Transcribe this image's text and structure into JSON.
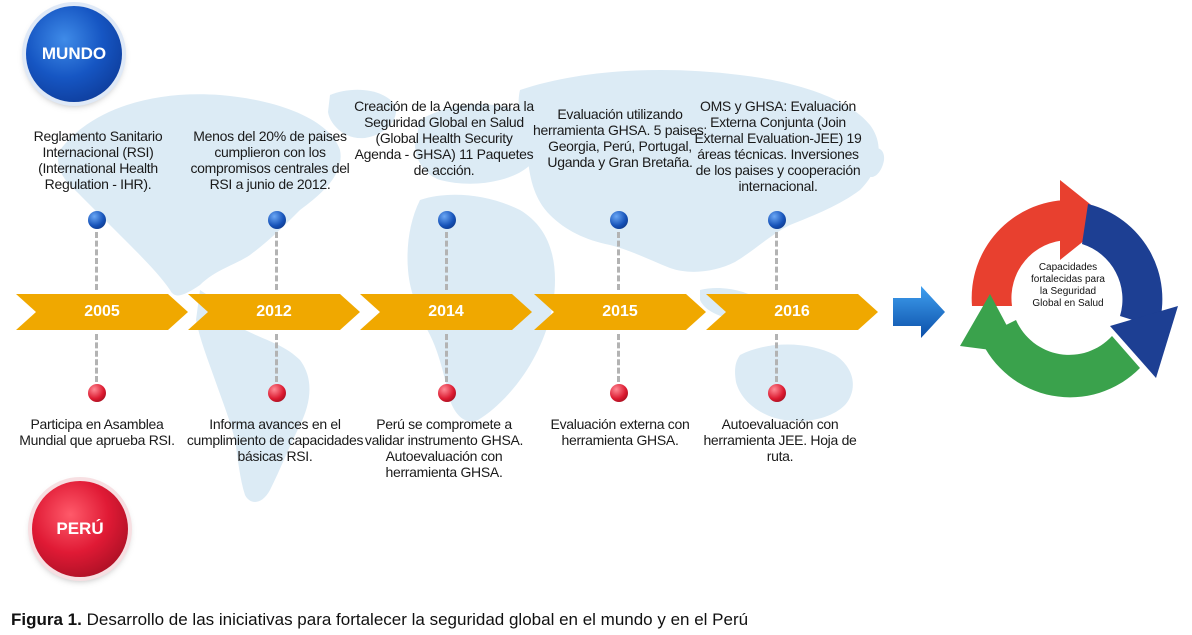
{
  "circles": {
    "mundo": "MUNDO",
    "peru": "PERÚ"
  },
  "timeline": [
    {
      "year": "2005",
      "mundo_text": "Reglamento Sanitario Internacional (RSI) (International Health Regulation - IHR).",
      "peru_text": "Participa en Asamblea Mundial que aprueba RSI."
    },
    {
      "year": "2012",
      "mundo_text": "Menos del 20% de paises cumplieron con los compromisos centrales del RSI a junio de 2012.",
      "peru_text": "Informa avances en el cumplimiento de capacidades básicas RSI."
    },
    {
      "year": "2014",
      "mundo_text": "Creación de la Agenda para la Seguridad Global en Salud (Global Health Security Agenda - GHSA) 11 Paquetes de acción.",
      "peru_text": "Perú se compromete a validar instrumento GHSA. Autoevaluación con herramienta GHSA."
    },
    {
      "year": "2015",
      "mundo_text": "Evaluación utilizando herramienta GHSA. 5 paises: Georgia, Perú, Portugal, Uganda y Gran Bretaña.",
      "peru_text": "Evaluación externa con herramienta GHSA."
    },
    {
      "year": "2016",
      "mundo_text": "OMS y GHSA: Evaluación Externa Conjunta (Join External Evaluation-JEE) 19 áreas técnicas. Inversiones de los paises y cooperación internacional.",
      "peru_text": "Autoevaluación con herramienta JEE. Hoja de ruta."
    }
  ],
  "cycle_label": "Capacidades fortalecidas para la Seguridad Global en Salud",
  "caption": {
    "prefix": "Figura 1.",
    "text": "Desarrollo de las iniciativas para fortalecer la seguridad global en el mundo y en el Perú"
  },
  "colors": {
    "banner": "#f0a800",
    "mundo": "#1656c3",
    "peru": "#e01a35",
    "map": "#dcebf5",
    "cycle_red": "#e8402f",
    "cycle_blue": "#1d3f93",
    "cycle_green": "#3aa24c"
  }
}
